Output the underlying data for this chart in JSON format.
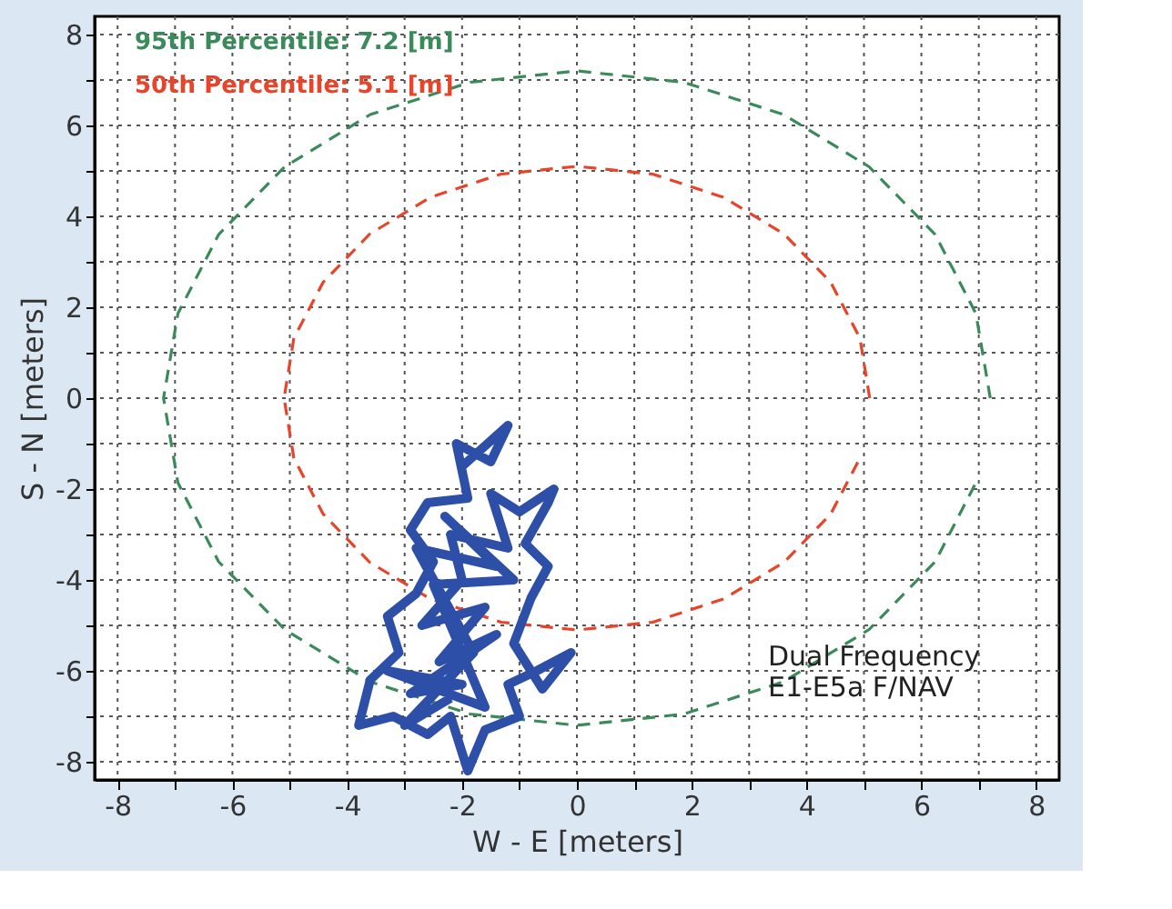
{
  "chart_data": {
    "type": "line",
    "xlabel": "W - E [meters]",
    "ylabel": "S - N [meters]",
    "xlim": [
      -8.4,
      8.4
    ],
    "ylim": [
      -8.4,
      8.4
    ],
    "xticks": [
      -8,
      {
        "value": -7,
        "label": null
      },
      -6,
      {
        "value": -5,
        "label": null
      },
      -4,
      {
        "value": -3,
        "label": null
      },
      -2,
      {
        "value": -1,
        "label": null
      },
      0,
      {
        "value": 1,
        "label": null
      },
      2,
      {
        "value": 3,
        "label": null
      },
      4,
      {
        "value": 5,
        "label": null
      },
      6,
      {
        "value": 7,
        "label": null
      },
      8
    ],
    "yticks": [
      -8,
      {
        "value": -7,
        "label": null
      },
      -6,
      {
        "value": -5,
        "label": null
      },
      -4,
      {
        "value": -3,
        "label": null
      },
      -2,
      {
        "value": -1,
        "label": null
      },
      0,
      {
        "value": 1,
        "label": null
      },
      2,
      {
        "value": 3,
        "label": null
      },
      4,
      {
        "value": 5,
        "label": null
      },
      6,
      {
        "value": 7,
        "label": null
      },
      8
    ],
    "grid": true,
    "marker": "none",
    "series": [
      {
        "name": "95th Percentile: 7.2 [m]",
        "color": "#3a8a5a",
        "line_style": "dashed",
        "x": [
          7.2,
          6.95,
          6.24,
          5.09,
          3.6,
          1.86,
          0,
          -1.86,
          -3.6,
          -5.09,
          -6.24,
          -6.95,
          -7.2,
          -6.95,
          -6.24,
          -5.09,
          -3.6,
          -1.86,
          0,
          1.86,
          3.6,
          5.09,
          6.24,
          6.95
        ],
        "values": [
          0,
          1.86,
          3.6,
          5.09,
          6.24,
          6.95,
          7.2,
          6.95,
          6.24,
          5.09,
          3.6,
          1.86,
          0,
          -1.86,
          -3.6,
          -5.09,
          -6.24,
          -6.95,
          -7.2,
          -6.95,
          -6.24,
          -5.09,
          -3.6,
          -1.86
        ]
      },
      {
        "name": "50th Percentile: 5.1 [m]",
        "color": "#e8442a",
        "line_style": "dashed",
        "x": [
          5.1,
          4.93,
          4.42,
          3.61,
          2.55,
          1.32,
          0,
          -1.32,
          -2.55,
          -3.61,
          -4.42,
          -4.93,
          -5.1,
          -4.93,
          -4.42,
          -3.61,
          -2.55,
          -1.32,
          0,
          1.32,
          2.55,
          3.61,
          4.42,
          4.93
        ],
        "values": [
          0,
          1.32,
          2.55,
          3.61,
          4.42,
          4.93,
          5.1,
          4.93,
          4.42,
          3.61,
          2.55,
          1.32,
          0,
          -1.32,
          -2.55,
          -3.61,
          -4.42,
          -4.93,
          -5.1,
          -4.93,
          -4.42,
          -3.61,
          -2.55,
          -1.32
        ]
      },
      {
        "color": "#2e4fa8",
        "line_style": "solid",
        "x": [
          -2.0,
          -1.2,
          -1.5,
          -2.1,
          -1.9,
          -2.6,
          -2.9,
          -2.5,
          -2.8,
          -3.3,
          -3.1,
          -3.6,
          -3.8,
          -3.2,
          -2.6,
          -2.2,
          -1.9,
          -1.6,
          -1.0,
          -1.2,
          -0.7,
          -0.1,
          -0.6,
          -1.1,
          -0.8,
          -0.5,
          -0.9,
          -0.5,
          -0.4,
          -1.0,
          -1.5,
          -1.2,
          -2.2,
          -2.0,
          -2.7,
          -1.6,
          -2.4,
          -1.4,
          -2.9,
          -2.0,
          -3.3,
          -1.6,
          -2.5,
          -1.1,
          -2.3,
          -1.4,
          -2.8,
          -1.8,
          -3.0,
          -2.2
        ],
        "values": [
          -1.5,
          -0.6,
          -1.4,
          -1.0,
          -2.2,
          -2.3,
          -2.9,
          -3.6,
          -4.3,
          -4.8,
          -5.6,
          -6.2,
          -7.2,
          -7.0,
          -7.4,
          -7.0,
          -8.2,
          -7.3,
          -7.0,
          -6.3,
          -6.0,
          -5.6,
          -6.4,
          -5.4,
          -4.4,
          -3.7,
          -3.2,
          -2.3,
          -2.0,
          -2.5,
          -2.1,
          -3.3,
          -3.0,
          -4.0,
          -5.0,
          -4.6,
          -5.8,
          -5.2,
          -6.5,
          -6.3,
          -6.0,
          -6.8,
          -4.1,
          -4.0,
          -2.6,
          -3.7,
          -3.3,
          -5.6,
          -7.2,
          -6.6
        ]
      }
    ],
    "annotations": [
      "Dual Frequency\nE1-E5a F/NAV"
    ]
  }
}
